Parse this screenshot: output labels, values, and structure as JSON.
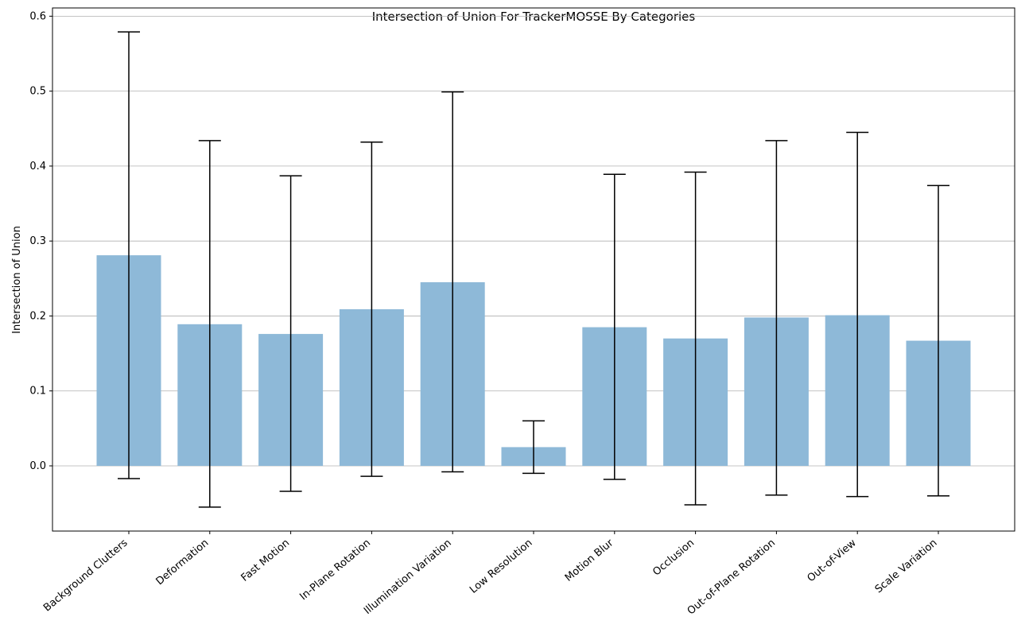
{
  "chart_data": {
    "type": "bar",
    "title": "Intersection of Union For TrackerMOSSE By Categories",
    "xlabel": "",
    "ylabel": "Intersection of Union",
    "categories": [
      "Background Clutters",
      "Deformation",
      "Fast Motion",
      "In-Plane Rotation",
      "Illumination Variation",
      "Low Resolution",
      "Motion Blur",
      "Occlusion",
      "Out-of-Plane Rotation",
      "Out-of-View",
      "Scale Variation"
    ],
    "values": [
      0.281,
      0.189,
      0.176,
      0.209,
      0.245,
      0.025,
      0.185,
      0.17,
      0.198,
      0.201,
      0.167
    ],
    "error_lower": [
      -0.017,
      -0.055,
      -0.034,
      -0.014,
      -0.008,
      -0.01,
      -0.018,
      -0.052,
      -0.039,
      -0.041,
      -0.04
    ],
    "error_upper": [
      0.579,
      0.434,
      0.387,
      0.432,
      0.499,
      0.06,
      0.389,
      0.392,
      0.434,
      0.445,
      0.374
    ],
    "ylim": [
      -0.087,
      0.611
    ],
    "yticks": [
      "0.0",
      "0.1",
      "0.2",
      "0.3",
      "0.4",
      "0.5",
      "0.6"
    ],
    "grid": true,
    "colors": {
      "bar": "#8eb9d8",
      "error": "#000000",
      "grid": "#b0b0b0"
    }
  }
}
